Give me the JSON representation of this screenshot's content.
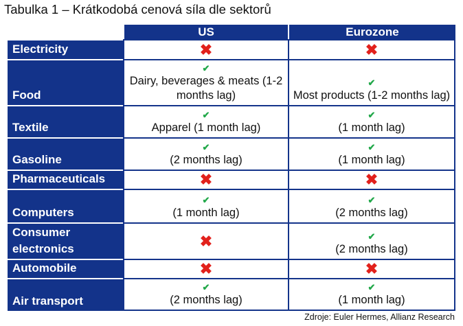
{
  "title": "Tabulka 1 – Krátkodobá cenová síla dle sektorů",
  "columns": [
    "US",
    "Eurozone"
  ],
  "rows": [
    {
      "sector": "Electricity",
      "us": {
        "mark": "cross",
        "note": ""
      },
      "eu": {
        "mark": "cross",
        "note": ""
      }
    },
    {
      "sector": "Food",
      "us": {
        "mark": "check",
        "note": "Dairy, beverages & meats (1-2 months lag)"
      },
      "eu": {
        "mark": "check",
        "note": "Most products (1-2 months lag)"
      }
    },
    {
      "sector": "Textile",
      "us": {
        "mark": "check",
        "note": "Apparel (1 month lag)"
      },
      "eu": {
        "mark": "check",
        "note": "(1 month lag)"
      }
    },
    {
      "sector": "Gasoline",
      "us": {
        "mark": "check",
        "note": "(2 months lag)"
      },
      "eu": {
        "mark": "check",
        "note": "(1 month lag)"
      }
    },
    {
      "sector": "Pharmaceuticals",
      "us": {
        "mark": "cross",
        "note": ""
      },
      "eu": {
        "mark": "cross",
        "note": ""
      }
    },
    {
      "sector": "Computers",
      "us": {
        "mark": "check",
        "note": "(1 month lag)"
      },
      "eu": {
        "mark": "check",
        "note": "(2 months lag)"
      }
    },
    {
      "sector": "Consumer electronics",
      "us": {
        "mark": "cross",
        "note": ""
      },
      "eu": {
        "mark": "check",
        "note": "(2 months lag)"
      }
    },
    {
      "sector": "Automobile",
      "us": {
        "mark": "cross",
        "note": ""
      },
      "eu": {
        "mark": "cross",
        "note": ""
      }
    },
    {
      "sector": "Air transport",
      "us": {
        "mark": "check",
        "note": "(2 months lag)"
      },
      "eu": {
        "mark": "check",
        "note": "(1 month lag)"
      }
    }
  ],
  "icons": {
    "check": "check-icon",
    "cross": "cross-icon"
  },
  "colors": {
    "header": "#13338a",
    "check": "#22a84a",
    "cross": "#e2211c"
  },
  "source": "Zdroje: Euler Hermes, Allianz Research"
}
